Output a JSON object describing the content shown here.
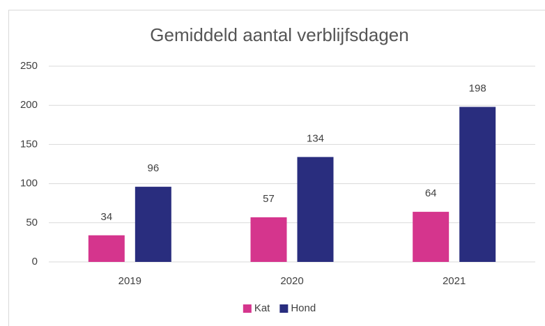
{
  "chart_data": {
    "type": "bar",
    "title": "Gemiddeld aantal verblijfsdagen",
    "categories": [
      "2019",
      "2020",
      "2021"
    ],
    "series": [
      {
        "name": "Kat",
        "color": "#d5358d",
        "values": [
          34,
          57,
          64
        ]
      },
      {
        "name": "Hond",
        "color": "#292d7e",
        "values": [
          96,
          134,
          198
        ]
      }
    ],
    "ylim": [
      0,
      250
    ],
    "yticks": [
      0,
      50,
      100,
      150,
      200,
      250
    ],
    "grid": true,
    "legend": "bottom"
  }
}
